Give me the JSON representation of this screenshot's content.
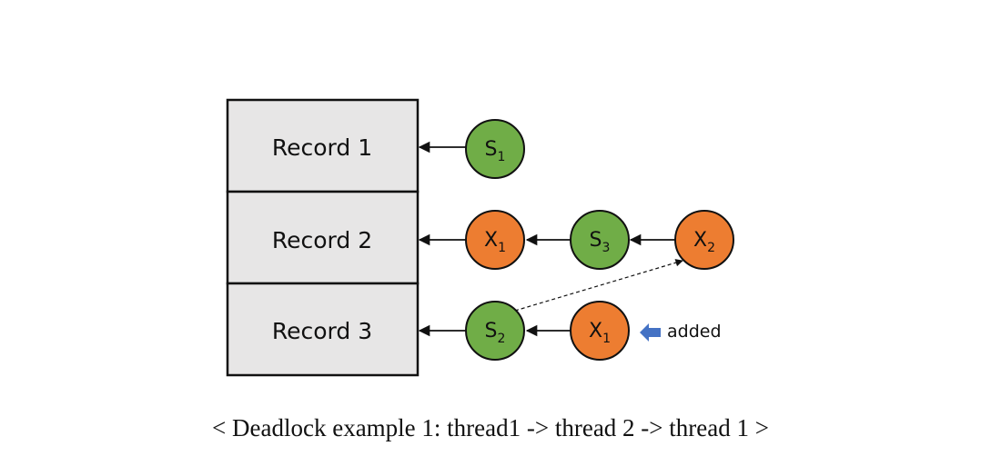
{
  "colors": {
    "shared_lock": "#70AD47",
    "exclusive_lock": "#ED7D31",
    "record_fill": "#E7E6E6",
    "added_arrow": "#4472C4"
  },
  "records": [
    {
      "label": "Record 1"
    },
    {
      "label": "Record 2"
    },
    {
      "label": "Record 3"
    }
  ],
  "locks": [
    {
      "record": 0,
      "letter": "S",
      "sub": "1",
      "kind": "shared"
    },
    {
      "record": 1,
      "letter": "X",
      "sub": "1",
      "kind": "exclusive"
    },
    {
      "record": 1,
      "letter": "S",
      "sub": "3",
      "kind": "shared"
    },
    {
      "record": 1,
      "letter": "X",
      "sub": "2",
      "kind": "exclusive"
    },
    {
      "record": 2,
      "letter": "S",
      "sub": "2",
      "kind": "shared"
    },
    {
      "record": 2,
      "letter": "X",
      "sub": "1",
      "kind": "exclusive"
    }
  ],
  "note": {
    "label": "added",
    "icon": "left-arrow-icon"
  },
  "caption": "< Deadlock example 1: thread1 -> thread 2 -> thread 1 >"
}
